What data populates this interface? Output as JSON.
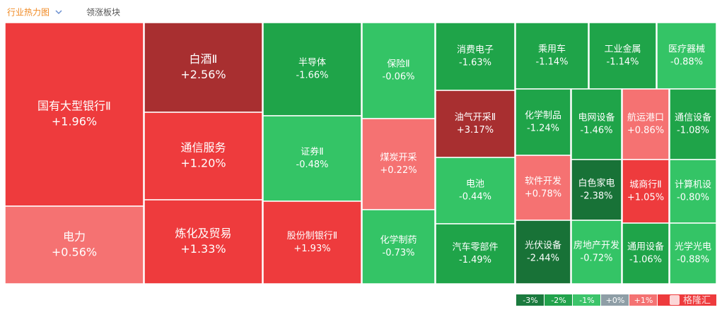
{
  "chart_data": {
    "type": "treemap",
    "tabs": [
      "行业热力图",
      "领涨板块"
    ],
    "categories": [
      "国有大型银行Ⅱ",
      "电力",
      "白酒Ⅱ",
      "通信服务",
      "炼化及贸易",
      "半导体",
      "证券Ⅱ",
      "股份制银行Ⅱ",
      "保险Ⅱ",
      "煤炭开采",
      "化学制药",
      "消费电子",
      "油气开采Ⅱ",
      "电池",
      "汽车零部件",
      "乘用车",
      "工业金属",
      "医疗器械",
      "化学制品",
      "软件开发",
      "光伏设备",
      "电网设备",
      "白色家电",
      "房地产开发",
      "航运港口",
      "城商行Ⅱ",
      "通用设备",
      "通信设备",
      "计算机设",
      "光学光电"
    ],
    "values": [
      1.96,
      0.56,
      2.56,
      1.2,
      1.33,
      -1.66,
      -0.48,
      1.93,
      -0.06,
      0.22,
      -0.73,
      -1.63,
      3.17,
      -0.44,
      -1.49,
      -1.14,
      -1.14,
      -0.88,
      -1.24,
      0.78,
      -2.44,
      -1.46,
      -2.38,
      -0.72,
      0.86,
      1.05,
      -1.06,
      -1.08,
      -0.8,
      -0.88
    ],
    "value_labels": [
      "+1.96%",
      "+0.56%",
      "+2.56%",
      "+1.20%",
      "+1.33%",
      "-1.66%",
      "-0.48%",
      "+1.93%",
      "-0.06%",
      "+0.22%",
      "-0.73%",
      "-1.63%",
      "+3.17%",
      "-0.44%",
      "-1.49%",
      "-1.14%",
      "-1.14%",
      "-0.88%",
      "-1.24%",
      "+0.78%",
      "-2.44%",
      "-1.46%",
      "-2.38%",
      "-0.72%",
      "+0.86%",
      "+1.05%",
      "-1.06%",
      "-1.08%",
      "-0.80%",
      "-0.88%"
    ],
    "legend": [
      {
        "value": -3,
        "label": "-3%",
        "color": "#1b7a3e"
      },
      {
        "value": -2,
        "label": "-2%",
        "color": "#22a24c"
      },
      {
        "value": -1,
        "label": "-1%",
        "color": "#3cc46a"
      },
      {
        "value": 0,
        "label": "+0%",
        "color": "#8e9ea6"
      },
      {
        "value": 1,
        "label": "+1%",
        "color": "#f47373"
      }
    ],
    "watermark": "格隆汇"
  }
}
